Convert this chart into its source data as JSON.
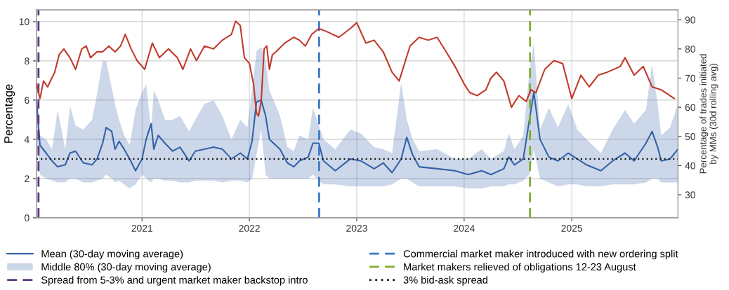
{
  "chart_data": {
    "type": "line",
    "ylabel": "Percentage",
    "y2label": "Percentage of trades initiated\nby MMs (30d rolling avg)",
    "annotations": [
      "Middle 80% (30-day moving average)"
    ],
    "xlim": [
      "2020-01-08",
      "2025-12-28"
    ],
    "xticks": [
      {
        "value": "2021-01-01",
        "label": "2021"
      },
      {
        "value": "2022-01-01",
        "label": "2022"
      },
      {
        "value": "2023-01-01",
        "label": "2023"
      },
      {
        "value": "2024-01-01",
        "label": "2024"
      },
      {
        "value": "2025-01-01",
        "label": "2025"
      }
    ],
    "ylim": [
      0,
      10.6
    ],
    "yticks": [
      0,
      2,
      4,
      6,
      8,
      10
    ],
    "y2lim": [
      22.1,
      93.4
    ],
    "y2ticks": [
      30,
      40,
      50,
      60,
      70,
      80,
      90
    ],
    "grid": true,
    "legend": "bottom",
    "line_style": "solid",
    "marker": "none",
    "series": [
      {
        "name": "Mean (30-day moving average)",
        "color": "#3461a8",
        "x": [
          "2020-01-08",
          "2020-01-20",
          "2020-02-10",
          "2020-03-01",
          "2020-03-20",
          "2020-04-15",
          "2020-05-01",
          "2020-05-20",
          "2020-06-15",
          "2020-07-15",
          "2020-08-01",
          "2020-08-20",
          "2020-09-01",
          "2020-09-20",
          "2020-10-01",
          "2020-10-15",
          "2020-11-01",
          "2020-11-20",
          "2020-12-10",
          "2021-01-01",
          "2021-01-15",
          "2021-02-01",
          "2021-02-10",
          "2021-02-25",
          "2021-03-20",
          "2021-04-15",
          "2021-05-10",
          "2021-06-10",
          "2021-07-01",
          "2021-08-01",
          "2021-09-01",
          "2021-10-01",
          "2021-11-01",
          "2021-12-01",
          "2021-12-25",
          "2022-01-10",
          "2022-01-25",
          "2022-02-10",
          "2022-02-25",
          "2022-03-10",
          "2022-04-15",
          "2022-05-10",
          "2022-06-01",
          "2022-06-20",
          "2022-07-20",
          "2022-08-05",
          "2022-08-25",
          "2022-09-10",
          "2022-10-20",
          "2022-12-10",
          "2023-01-15",
          "2023-03-01",
          "2023-04-01",
          "2023-05-01",
          "2023-06-01",
          "2023-06-20",
          "2023-07-10",
          "2023-08-01",
          "2023-10-01",
          "2023-12-01",
          "2024-01-15",
          "2024-03-01",
          "2024-04-01",
          "2024-05-15",
          "2024-06-01",
          "2024-06-20",
          "2024-07-20",
          "2024-08-10",
          "2024-08-25",
          "2024-09-15",
          "2024-10-15",
          "2024-11-15",
          "2024-12-20",
          "2025-01-20",
          "2025-02-20",
          "2025-04-10",
          "2025-05-20",
          "2025-07-01",
          "2025-08-01",
          "2025-09-10",
          "2025-10-01",
          "2025-10-20",
          "2025-11-01",
          "2025-12-01",
          "2025-12-28"
        ],
        "values": [
          6.0,
          3.7,
          3.3,
          2.9,
          2.6,
          2.7,
          3.3,
          3.4,
          2.8,
          2.7,
          3.0,
          3.8,
          4.6,
          4.4,
          3.5,
          3.9,
          3.5,
          3.0,
          2.4,
          3.0,
          4.0,
          4.8,
          3.5,
          4.2,
          3.8,
          3.4,
          3.6,
          2.9,
          3.4,
          3.5,
          3.6,
          3.5,
          3.0,
          3.3,
          3.0,
          3.9,
          5.9,
          6.0,
          5.2,
          4.0,
          3.5,
          2.8,
          2.6,
          2.9,
          3.1,
          3.8,
          3.8,
          2.9,
          2.4,
          3.0,
          2.9,
          2.5,
          2.8,
          2.3,
          3.0,
          4.1,
          3.2,
          2.6,
          2.5,
          2.4,
          2.2,
          2.4,
          2.2,
          2.5,
          3.1,
          2.7,
          3.0,
          5.0,
          6.4,
          4.0,
          3.1,
          2.9,
          3.3,
          3.0,
          2.7,
          2.4,
          2.9,
          3.3,
          2.9,
          3.8,
          4.4,
          3.6,
          2.9,
          3.0,
          3.5
        ],
        "upper": [
          6.2,
          4.2,
          4.0,
          3.5,
          5.5,
          3.5,
          5.7,
          4.7,
          4.5,
          5.0,
          6.3,
          8.0,
          8.0,
          6.6,
          5.8,
          5.0,
          4.2,
          3.7,
          5.5,
          6.4,
          6.8,
          4.5,
          6.5,
          6.0,
          5.0,
          5.0,
          5.2,
          4.4,
          5.0,
          5.8,
          6.0,
          5.2,
          4.0,
          5.0,
          4.6,
          6.5,
          8.5,
          8.7,
          8.0,
          6.5,
          5.2,
          3.6,
          3.4,
          4.2,
          4.0,
          5.6,
          4.7,
          4.0,
          3.5,
          4.5,
          4.3,
          3.6,
          3.5,
          3.3,
          6.9,
          5.0,
          4.0,
          3.4,
          3.5,
          3.0,
          3.0,
          3.5,
          3.0,
          3.4,
          4.3,
          3.5,
          4.2,
          7.5,
          8.9,
          4.5,
          5.6,
          4.6,
          5.8,
          4.5,
          4.0,
          3.3,
          4.5,
          5.5,
          4.8,
          5.5,
          7.8,
          5.8,
          4.2,
          4.6,
          5.8
        ],
        "lower": [
          4.0,
          2.2,
          2.0,
          1.9,
          1.8,
          1.8,
          2.0,
          2.0,
          1.8,
          1.8,
          1.9,
          2.0,
          2.2,
          2.0,
          1.8,
          1.9,
          1.7,
          1.5,
          1.7,
          2.2,
          2.0,
          1.8,
          2.0,
          2.0,
          1.9,
          1.9,
          1.8,
          1.8,
          1.9,
          1.9,
          1.9,
          1.8,
          1.9,
          1.9,
          1.8,
          2.0,
          3.2,
          4.5,
          2.2,
          2.0,
          2.0,
          2.0,
          2.0,
          2.0,
          2.0,
          2.2,
          1.9,
          1.7,
          1.7,
          1.6,
          1.6,
          1.6,
          1.6,
          1.7,
          2.0,
          2.0,
          1.8,
          1.6,
          1.6,
          1.6,
          1.5,
          1.5,
          1.6,
          1.6,
          1.7,
          1.7,
          1.9,
          2.2,
          3.5,
          2.0,
          1.8,
          1.6,
          1.7,
          1.7,
          1.6,
          1.6,
          1.7,
          1.7,
          1.7,
          1.8,
          2.0,
          2.0,
          1.8,
          1.8,
          1.8
        ]
      },
      {
        "axis": "y2",
        "color": "#c0392b",
        "x": [
          "2020-01-08",
          "2020-01-20",
          "2020-02-01",
          "2020-02-15",
          "2020-03-10",
          "2020-03-25",
          "2020-04-10",
          "2020-05-01",
          "2020-05-20",
          "2020-06-10",
          "2020-06-25",
          "2020-07-10",
          "2020-08-01",
          "2020-08-20",
          "2020-09-10",
          "2020-10-01",
          "2020-10-20",
          "2020-11-05",
          "2020-11-25",
          "2020-12-15",
          "2021-01-10",
          "2021-02-05",
          "2021-03-01",
          "2021-04-01",
          "2021-05-01",
          "2021-05-20",
          "2021-06-15",
          "2021-07-05",
          "2021-08-01",
          "2021-09-01",
          "2021-10-01",
          "2021-11-01",
          "2021-11-15",
          "2021-12-01",
          "2021-12-15",
          "2022-01-01",
          "2022-01-15",
          "2022-01-25",
          "2022-02-01",
          "2022-02-10",
          "2022-02-20",
          "2022-03-01",
          "2022-03-10",
          "2022-03-20",
          "2022-04-01",
          "2022-05-01",
          "2022-06-01",
          "2022-06-20",
          "2022-07-10",
          "2022-08-01",
          "2022-08-25",
          "2022-09-20",
          "2022-11-01",
          "2022-12-10",
          "2023-01-01",
          "2023-02-01",
          "2023-03-01",
          "2023-04-01",
          "2023-05-01",
          "2023-05-25",
          "2023-07-01",
          "2023-08-01",
          "2023-09-01",
          "2023-10-01",
          "2023-11-01",
          "2023-12-01",
          "2024-01-01",
          "2024-01-20",
          "2024-02-15",
          "2024-03-15",
          "2024-04-01",
          "2024-04-20",
          "2024-05-15",
          "2024-06-10",
          "2024-07-05",
          "2024-07-30",
          "2024-08-15",
          "2024-09-01",
          "2024-10-01",
          "2024-11-01",
          "2024-12-01",
          "2025-01-01",
          "2025-02-01",
          "2025-03-01",
          "2025-04-01",
          "2025-05-01",
          "2025-06-15",
          "2025-07-01",
          "2025-08-01",
          "2025-09-01",
          "2025-10-01",
          "2025-11-01",
          "2025-12-15"
        ],
        "values": [
          68,
          63,
          69,
          67,
          72,
          78,
          80,
          77,
          73,
          80,
          81,
          77,
          79,
          79,
          81,
          79,
          81,
          85,
          80,
          76,
          73,
          82,
          77,
          80,
          77,
          73,
          80,
          76,
          81,
          80,
          83,
          85,
          89.5,
          88,
          77,
          75,
          68,
          58,
          57,
          62,
          80,
          81,
          73,
          78,
          79,
          82,
          84,
          83,
          81,
          85,
          87,
          86,
          84,
          87,
          89,
          82,
          83,
          79,
          72,
          69,
          81,
          84,
          83,
          84,
          79,
          74,
          68,
          65,
          64,
          66,
          70,
          72,
          69,
          60,
          64,
          62,
          66,
          65,
          73,
          76,
          75,
          63,
          71,
          67,
          71,
          72,
          74,
          77,
          71,
          74,
          67,
          66,
          63
        ]
      }
    ],
    "ref_lines": [
      {
        "axis": "x",
        "value": "2020-01-15",
        "label": "Spread from 5-3% and urgent market maker backstop intro",
        "color": "#5b3a80",
        "line_style": "dashed"
      },
      {
        "axis": "x",
        "value": "2022-08-26",
        "label": "Commercial market maker introduced with new ordering split",
        "color": "#3c78c8",
        "line_style": "dashed"
      },
      {
        "axis": "x",
        "value": "2024-08-12",
        "label": "Market makers relieved of obligations 12-23 August",
        "color": "#7fae2e",
        "line_style": "dashed"
      },
      {
        "axis": "y",
        "value": 3,
        "label": "3% bid-ask spread",
        "color": "#1a1a1a",
        "line_style": "dotted"
      }
    ]
  }
}
